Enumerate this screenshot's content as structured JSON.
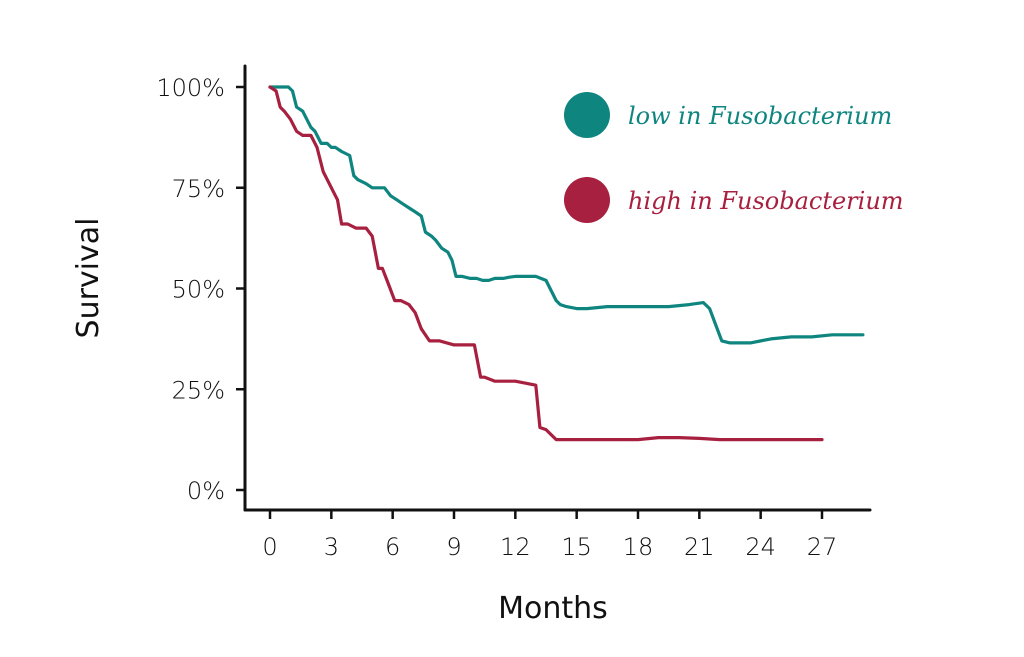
{
  "chart_data": {
    "type": "line",
    "title": "",
    "xlabel": "Months",
    "ylabel": "Survival",
    "xlim": [
      -2.5,
      29
    ],
    "ylim": [
      0,
      105
    ],
    "x_ticks": [
      0,
      3,
      6,
      9,
      12,
      15,
      18,
      21,
      24,
      27
    ],
    "x_tick_labels": [
      "0",
      "3",
      "6",
      "9",
      "12",
      "15",
      "18",
      "21",
      "24",
      "27"
    ],
    "y_ticks": [
      0,
      25,
      50,
      75,
      100
    ],
    "y_tick_labels": [
      "0%",
      "25%",
      "50%",
      "75%",
      "100%"
    ],
    "grid": false,
    "legend_position": "top-right",
    "series": [
      {
        "name": "low in Fusobacterium",
        "color": "#0f8580",
        "x": [
          0.0,
          0.5,
          0.9,
          1.1,
          1.3,
          1.6,
          2.0,
          2.2,
          2.5,
          2.8,
          3.0,
          3.2,
          3.5,
          3.9,
          4.1,
          4.3,
          4.7,
          5.0,
          5.3,
          5.6,
          5.9,
          6.2,
          6.5,
          6.8,
          7.1,
          7.4,
          7.6,
          7.9,
          8.1,
          8.4,
          8.7,
          8.9,
          9.1,
          9.4,
          9.8,
          10.1,
          10.4,
          10.7,
          11.0,
          11.4,
          11.7,
          12.0,
          12.5,
          13.0,
          13.5,
          14.0,
          14.2,
          14.5,
          15.0,
          15.5,
          16.5,
          17.5,
          18.5,
          19.5,
          20.5,
          21.2,
          21.5,
          21.8,
          22.1,
          22.5,
          23.5,
          24.5,
          25.5,
          26.5,
          27.5,
          28.5,
          29.0
        ],
        "values": [
          100.0,
          100.0,
          100.0,
          99.0,
          95.0,
          94.0,
          90.0,
          89.0,
          86.0,
          86.0,
          85.0,
          85.0,
          84.0,
          83.0,
          78.0,
          77.0,
          76.0,
          75.0,
          75.0,
          75.0,
          73.0,
          72.0,
          71.0,
          70.0,
          69.0,
          68.0,
          64.0,
          63.0,
          62.0,
          60.0,
          59.0,
          57.0,
          53.0,
          53.0,
          52.5,
          52.5,
          52.0,
          52.0,
          52.5,
          52.5,
          52.8,
          53.0,
          53.0,
          53.0,
          52.0,
          47.0,
          46.0,
          45.5,
          45.0,
          45.0,
          45.5,
          45.5,
          45.5,
          45.5,
          46.0,
          46.5,
          45.0,
          41.0,
          37.0,
          36.5,
          36.5,
          37.5,
          38.0,
          38.0,
          38.5,
          38.5,
          38.5
        ]
      },
      {
        "name": "high in Fusobacterium",
        "color": "#a8203f",
        "x": [
          0.0,
          0.3,
          0.5,
          0.7,
          1.0,
          1.3,
          1.6,
          2.0,
          2.3,
          2.6,
          2.9,
          3.1,
          3.3,
          3.5,
          3.8,
          4.2,
          4.7,
          5.0,
          5.3,
          5.5,
          5.8,
          6.1,
          6.4,
          6.8,
          7.1,
          7.4,
          7.8,
          8.3,
          9.0,
          9.5,
          10.0,
          10.3,
          10.5,
          11.0,
          11.5,
          12.0,
          12.5,
          13.0,
          13.2,
          13.5,
          14.0,
          15.0,
          16.0,
          17.0,
          18.0,
          19.0,
          20.0,
          21.0,
          22.0,
          23.0,
          24.0,
          25.0,
          26.0,
          27.0
        ],
        "values": [
          100.0,
          99.0,
          95.0,
          94.0,
          92.0,
          89.0,
          88.0,
          88.0,
          85.0,
          79.0,
          76.0,
          74.0,
          72.0,
          66.0,
          66.0,
          65.0,
          65.0,
          63.0,
          55.0,
          55.0,
          51.0,
          47.0,
          47.0,
          46.0,
          44.0,
          40.0,
          37.0,
          37.0,
          36.0,
          36.0,
          36.0,
          28.0,
          28.0,
          27.0,
          27.0,
          27.0,
          26.5,
          26.0,
          15.5,
          15.0,
          12.5,
          12.5,
          12.5,
          12.5,
          12.5,
          13.0,
          13.0,
          12.8,
          12.5,
          12.5,
          12.5,
          12.5,
          12.5,
          12.5
        ]
      }
    ]
  }
}
